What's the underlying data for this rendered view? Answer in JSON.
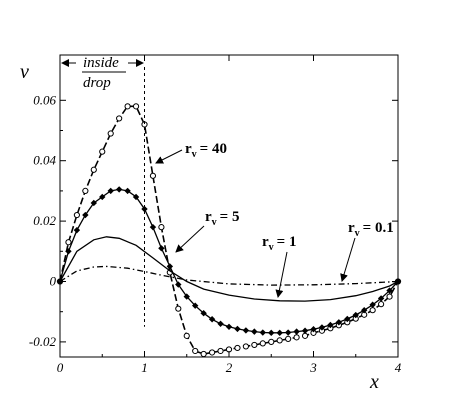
{
  "chart_data": {
    "type": "line",
    "xlabel": "x",
    "ylabel": "v",
    "xlim": [
      0,
      4
    ],
    "ylim": [
      -0.025,
      0.075
    ],
    "xticks": [
      "0",
      "1",
      "2",
      "3",
      "4"
    ],
    "yticks": [
      "-0.02",
      "0",
      "0.02",
      "0.04",
      "0.06"
    ],
    "annotation": {
      "line1": "inside",
      "line2": "drop",
      "x": 1
    },
    "series": [
      {
        "name": "rᵥ = 40",
        "label_main": "r",
        "label_sub": "v",
        "label_value": "= 40",
        "style": "dashed-circles",
        "x": [
          0,
          0.1,
          0.2,
          0.3,
          0.4,
          0.5,
          0.6,
          0.7,
          0.8,
          0.9,
          1.0,
          1.1,
          1.2,
          1.3,
          1.4,
          1.5,
          1.6,
          1.7,
          1.8,
          1.9,
          2.0,
          2.1,
          2.2,
          2.3,
          2.4,
          2.5,
          2.6,
          2.7,
          2.8,
          2.9,
          3.0,
          3.1,
          3.2,
          3.3,
          3.4,
          3.5,
          3.6,
          3.7,
          3.8,
          3.9,
          4.0
        ],
        "y": [
          0,
          0.013,
          0.022,
          0.03,
          0.037,
          0.043,
          0.049,
          0.054,
          0.058,
          0.058,
          0.052,
          0.035,
          0.018,
          0.003,
          -0.009,
          -0.018,
          -0.023,
          -0.024,
          -0.0235,
          -0.023,
          -0.0225,
          -0.022,
          -0.0215,
          -0.021,
          -0.0205,
          -0.02,
          -0.0195,
          -0.019,
          -0.0185,
          -0.018,
          -0.017,
          -0.0163,
          -0.0155,
          -0.0145,
          -0.0135,
          -0.0123,
          -0.011,
          -0.0095,
          -0.0075,
          -0.005,
          0
        ]
      },
      {
        "name": "rᵥ = 5",
        "label_main": "r",
        "label_sub": "v",
        "label_value": "= 5",
        "style": "solid-diamonds",
        "x": [
          0,
          0.1,
          0.2,
          0.3,
          0.4,
          0.5,
          0.6,
          0.7,
          0.8,
          0.9,
          1.0,
          1.1,
          1.2,
          1.3,
          1.4,
          1.5,
          1.6,
          1.7,
          1.8,
          1.9,
          2.0,
          2.1,
          2.2,
          2.3,
          2.4,
          2.5,
          2.6,
          2.7,
          2.8,
          2.9,
          3.0,
          3.1,
          3.2,
          3.3,
          3.4,
          3.5,
          3.6,
          3.7,
          3.8,
          3.9,
          4.0
        ],
        "y": [
          0,
          0.01,
          0.017,
          0.022,
          0.026,
          0.028,
          0.03,
          0.0305,
          0.03,
          0.028,
          0.024,
          0.018,
          0.011,
          0.005,
          -0.001,
          -0.005,
          -0.008,
          -0.0105,
          -0.0125,
          -0.014,
          -0.015,
          -0.0157,
          -0.0162,
          -0.0166,
          -0.0169,
          -0.017,
          -0.017,
          -0.0169,
          -0.0166,
          -0.0163,
          -0.0158,
          -0.0152,
          -0.0144,
          -0.0135,
          -0.0124,
          -0.0111,
          -0.0095,
          -0.0077,
          -0.0056,
          -0.003,
          0
        ]
      },
      {
        "name": "rᵥ = 1",
        "label_main": "r",
        "label_sub": "v",
        "label_value": "= 1",
        "style": "solid",
        "x": [
          0,
          0.2,
          0.4,
          0.55,
          0.7,
          0.9,
          1.1,
          1.3,
          1.5,
          1.7,
          2.0,
          2.3,
          2.6,
          2.9,
          3.2,
          3.5,
          3.7,
          3.9,
          4.0
        ],
        "y": [
          0,
          0.01,
          0.0138,
          0.0148,
          0.0143,
          0.012,
          0.0078,
          0.0035,
          0.0,
          -0.0025,
          -0.0045,
          -0.0058,
          -0.0064,
          -0.0065,
          -0.006,
          -0.0047,
          -0.0033,
          -0.0015,
          0
        ]
      },
      {
        "name": "rᵥ = 0.1",
        "label_main": "r",
        "label_sub": "v",
        "label_value": "= 0.1",
        "style": "dash-dot",
        "x": [
          0,
          0.2,
          0.4,
          0.55,
          0.8,
          1.0,
          1.2,
          1.5,
          2.0,
          2.5,
          3.0,
          3.5,
          4.0
        ],
        "y": [
          0,
          0.0035,
          0.0048,
          0.005,
          0.0044,
          0.0033,
          0.0021,
          0.0005,
          -0.0008,
          -0.0012,
          -0.0011,
          -0.0007,
          0
        ]
      }
    ]
  }
}
